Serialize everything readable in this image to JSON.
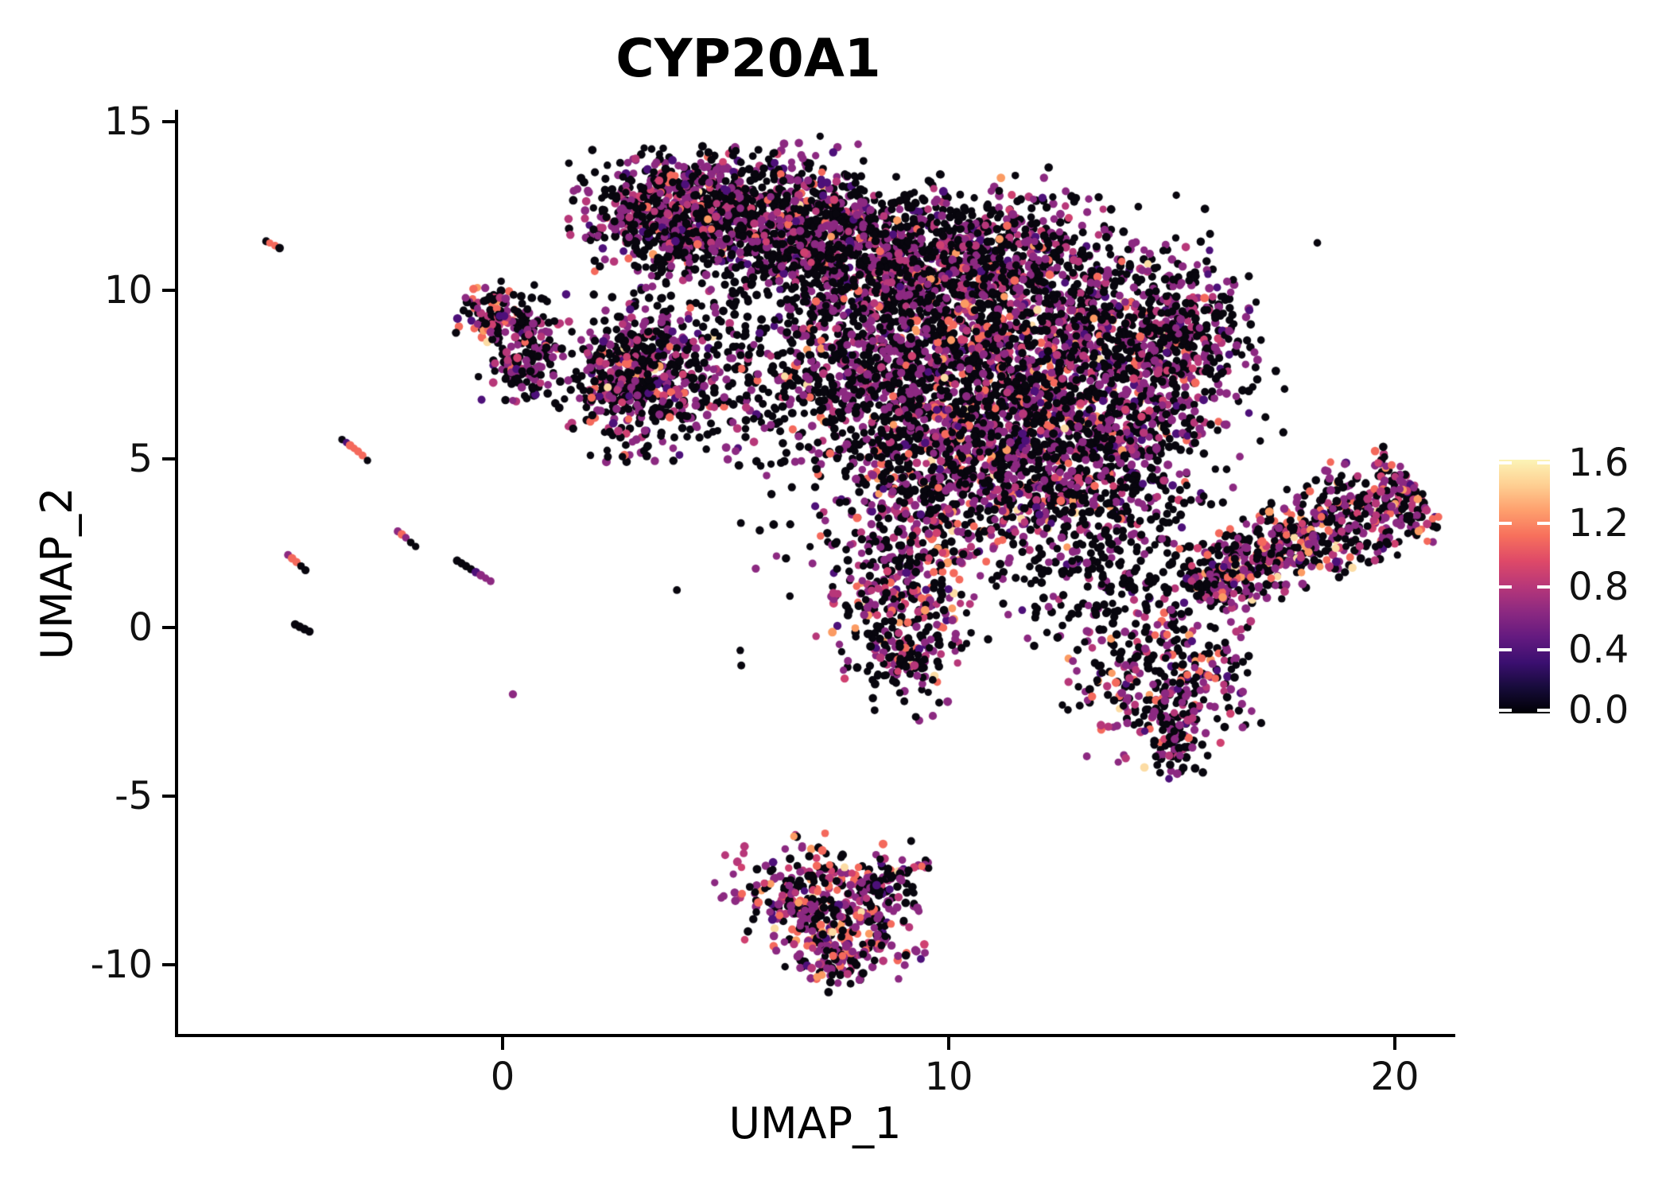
{
  "title": "CYP20A1",
  "chart_data": {
    "type": "scatter",
    "title": "CYP20A1",
    "xlabel": "UMAP_1",
    "ylabel": "UMAP_2",
    "xlim": [
      -7.31,
      21.32
    ],
    "ylim": [
      -12.1,
      15.35
    ],
    "x_ticks": [
      0,
      10,
      20
    ],
    "y_ticks": [
      15,
      10,
      5,
      0,
      -5,
      -10
    ],
    "grid": false,
    "legend": {
      "position": "right",
      "values": [
        1.6,
        1.2,
        0.8,
        0.4,
        0.0
      ],
      "labels": [
        "1.6",
        "1.2",
        "0.8",
        "0.4",
        "0.0"
      ],
      "colormap": "magma",
      "min": 0.0,
      "max": 1.6,
      "gradient_stops": [
        "#000004",
        "#160b39",
        "#3b0f70",
        "#641a80",
        "#8c2981",
        "#b73779",
        "#de4968",
        "#f7705c",
        "#fe9f6d",
        "#fecf92",
        "#fcf4b6"
      ]
    },
    "palette": {
      "black": "#08060e",
      "dpurple": "#4d1079",
      "purple": "#8c2981",
      "magenta": "#b73779",
      "pink": "#cf4070",
      "salmon": "#f4695c",
      "orange": "#fb9b63",
      "pale": "#fcdca4"
    },
    "mixes": {
      "default": {
        "black": 0.545,
        "dpurple": 0.05,
        "purple": 0.26,
        "magenta": 0.08,
        "pink": 0.02,
        "salmon": 0.03,
        "orange": 0.008,
        "pale": 0.004
      },
      "warm": {
        "black": 0.46,
        "dpurple": 0.03,
        "purple": 0.27,
        "magenta": 0.09,
        "pink": 0.03,
        "salmon": 0.08,
        "orange": 0.025,
        "pale": 0.008
      },
      "hot": {
        "black": 0.38,
        "dpurple": 0.02,
        "purple": 0.29,
        "magenta": 0.1,
        "pink": 0.03,
        "salmon": 0.13,
        "orange": 0.04,
        "pale": 0.01
      },
      "dark": {
        "black": 0.78,
        "dpurple": 0.02,
        "purple": 0.15,
        "magenta": 0.03,
        "pink": 0.005,
        "salmon": 0.015,
        "orange": 0.0,
        "pale": 0.0
      }
    },
    "point_radius_px": 5,
    "clusters": [
      {
        "type": "gauss",
        "x": 4.15,
        "y": 12.29,
        "sx": 1.16,
        "sy": 0.85,
        "n": 850,
        "mix": "default"
      },
      {
        "type": "gauss",
        "x": 6.7,
        "y": 12.19,
        "sx": 0.75,
        "sy": 1.05,
        "n": 300,
        "mix": "default"
      },
      {
        "type": "gauss",
        "x": 4.4,
        "y": 9.4,
        "sx": 1.3,
        "sy": 1.3,
        "n": 130,
        "mix": "dark"
      },
      {
        "type": "gauss",
        "x": -0.18,
        "y": 9.22,
        "sx": 0.38,
        "sy": 0.45,
        "n": 100,
        "mix": "hot"
      },
      {
        "type": "gauss",
        "x": 0.64,
        "y": 8.7,
        "sx": 0.42,
        "sy": 0.5,
        "n": 90,
        "mix": "default"
      },
      {
        "type": "gauss",
        "x": 0.53,
        "y": 7.52,
        "sx": 0.46,
        "sy": 0.44,
        "n": 100,
        "mix": "default"
      },
      {
        "type": "gauss",
        "x": 3.35,
        "y": 7.33,
        "sx": 0.95,
        "sy": 1.1,
        "n": 420,
        "mix": "default"
      },
      {
        "type": "gauss",
        "x": 2.7,
        "y": 7.5,
        "sx": 0.5,
        "sy": 0.7,
        "n": 160,
        "mix": "default"
      },
      {
        "type": "gauss",
        "x": 5.6,
        "y": 7.2,
        "sx": 0.9,
        "sy": 0.9,
        "n": 70,
        "mix": "dark"
      },
      {
        "type": "gauss",
        "x": 8.07,
        "y": 11.06,
        "sx": 1.4,
        "sy": 1.05,
        "n": 700,
        "mix": "default"
      },
      {
        "type": "gauss",
        "x": 10.75,
        "y": 10.94,
        "sx": 1.35,
        "sy": 1.05,
        "n": 650,
        "mix": "default"
      },
      {
        "type": "gauss",
        "x": 8.7,
        "y": 7.64,
        "sx": 1.5,
        "sy": 1.5,
        "n": 900,
        "mix": "default"
      },
      {
        "type": "gauss",
        "x": 11.91,
        "y": 8.0,
        "sx": 1.5,
        "sy": 1.5,
        "n": 900,
        "mix": "warm"
      },
      {
        "type": "gauss",
        "x": 14.49,
        "y": 8.7,
        "sx": 1.0,
        "sy": 1.4,
        "n": 380,
        "mix": "default"
      },
      {
        "type": "gauss",
        "x": 15.7,
        "y": 8.5,
        "sx": 0.6,
        "sy": 1.2,
        "n": 150,
        "mix": "default"
      },
      {
        "type": "gauss",
        "x": 10.66,
        "y": 4.46,
        "sx": 1.6,
        "sy": 1.3,
        "n": 750,
        "mix": "warm"
      },
      {
        "type": "gauss",
        "x": 13.6,
        "y": 5.05,
        "sx": 1.25,
        "sy": 1.3,
        "n": 480,
        "mix": "default"
      },
      {
        "type": "gauss",
        "x": 8.84,
        "y": 1.04,
        "sx": 0.82,
        "sy": 1.3,
        "n": 300,
        "mix": "warm"
      },
      {
        "type": "gauss",
        "x": 9.06,
        "y": -1.08,
        "sx": 0.45,
        "sy": 0.85,
        "n": 90,
        "mix": "default"
      },
      {
        "type": "gauss",
        "x": 14.8,
        "y": -1.49,
        "sx": 1.0,
        "sy": 1.18,
        "n": 340,
        "mix": "warm"
      },
      {
        "type": "gauss",
        "x": 15.08,
        "y": -3.21,
        "sx": 0.36,
        "sy": 0.6,
        "n": 60,
        "mix": "default"
      },
      {
        "type": "gauss",
        "x": 13.33,
        "y": 1.63,
        "sx": 1.05,
        "sy": 1.05,
        "n": 170,
        "mix": "dark"
      },
      {
        "type": "gauss",
        "x": 11.0,
        "y": 6.0,
        "sx": 3.2,
        "sy": 3.3,
        "n": 420,
        "mix": "dark"
      },
      {
        "type": "band",
        "x1": 15.42,
        "y1": 1.11,
        "x2": 20.5,
        "y2": 4.17,
        "w1": 0.45,
        "w2": 0.8,
        "n": 720,
        "mix": "warm"
      },
      {
        "type": "gauss",
        "x": 7.09,
        "y": -7.76,
        "sx": 1.0,
        "sy": 0.72,
        "n": 260,
        "mix": "hot"
      },
      {
        "type": "gauss",
        "x": 7.72,
        "y": -8.87,
        "sx": 0.82,
        "sy": 0.76,
        "n": 210,
        "mix": "hot"
      },
      {
        "type": "gauss",
        "x": 7.42,
        "y": -9.86,
        "sx": 0.4,
        "sy": 0.42,
        "n": 60,
        "mix": "hot"
      },
      {
        "type": "band",
        "x1": 8.16,
        "y1": -7.5,
        "x2": 9.59,
        "y2": -7.05,
        "w1": 0.1,
        "w2": 0.1,
        "n": 22,
        "mix": "default"
      },
      {
        "type": "streak",
        "pts": [
          [
            -5.3,
            11.45,
            "black"
          ],
          [
            -5.22,
            11.4,
            "salmon"
          ],
          [
            -5.1,
            11.32,
            "salmon"
          ],
          [
            -5.0,
            11.25,
            "black"
          ]
        ]
      },
      {
        "type": "streak",
        "pts": [
          [
            -3.6,
            5.57,
            "black"
          ],
          [
            -3.5,
            5.48,
            "dpurple"
          ],
          [
            -3.42,
            5.4,
            "salmon"
          ],
          [
            -3.33,
            5.31,
            "salmon"
          ],
          [
            -3.24,
            5.22,
            "salmon"
          ],
          [
            -3.14,
            5.1,
            "salmon"
          ],
          [
            -3.03,
            4.95,
            "black"
          ]
        ]
      },
      {
        "type": "streak",
        "pts": [
          [
            -4.81,
            2.15,
            "purple"
          ],
          [
            -4.72,
            2.05,
            "salmon"
          ],
          [
            -4.62,
            1.94,
            "salmon"
          ],
          [
            -4.52,
            1.82,
            "black"
          ],
          [
            -4.42,
            1.7,
            "black"
          ]
        ]
      },
      {
        "type": "streak",
        "pts": [
          [
            -2.35,
            2.85,
            "purple"
          ],
          [
            -2.26,
            2.76,
            "salmon"
          ],
          [
            -2.17,
            2.66,
            "purple"
          ],
          [
            -2.06,
            2.52,
            "black"
          ],
          [
            -1.95,
            2.4,
            "black"
          ]
        ]
      },
      {
        "type": "streak",
        "pts": [
          [
            -1.02,
            1.98,
            "black"
          ],
          [
            -0.92,
            1.9,
            "black"
          ],
          [
            -0.82,
            1.82,
            "black"
          ],
          [
            -0.71,
            1.73,
            "black"
          ],
          [
            -0.6,
            1.64,
            "dpurple"
          ],
          [
            -0.49,
            1.55,
            "purple"
          ],
          [
            -0.38,
            1.46,
            "purple"
          ],
          [
            -0.27,
            1.37,
            "purple"
          ]
        ]
      },
      {
        "type": "streak",
        "pts": [
          [
            -4.65,
            0.09,
            "black"
          ],
          [
            -4.55,
            0.02,
            "black"
          ],
          [
            -4.44,
            -0.05,
            "black"
          ],
          [
            -4.33,
            -0.12,
            "black"
          ]
        ]
      },
      {
        "type": "streak",
        "pts": [
          [
            0.23,
            -1.98,
            "purple"
          ]
        ]
      }
    ]
  }
}
